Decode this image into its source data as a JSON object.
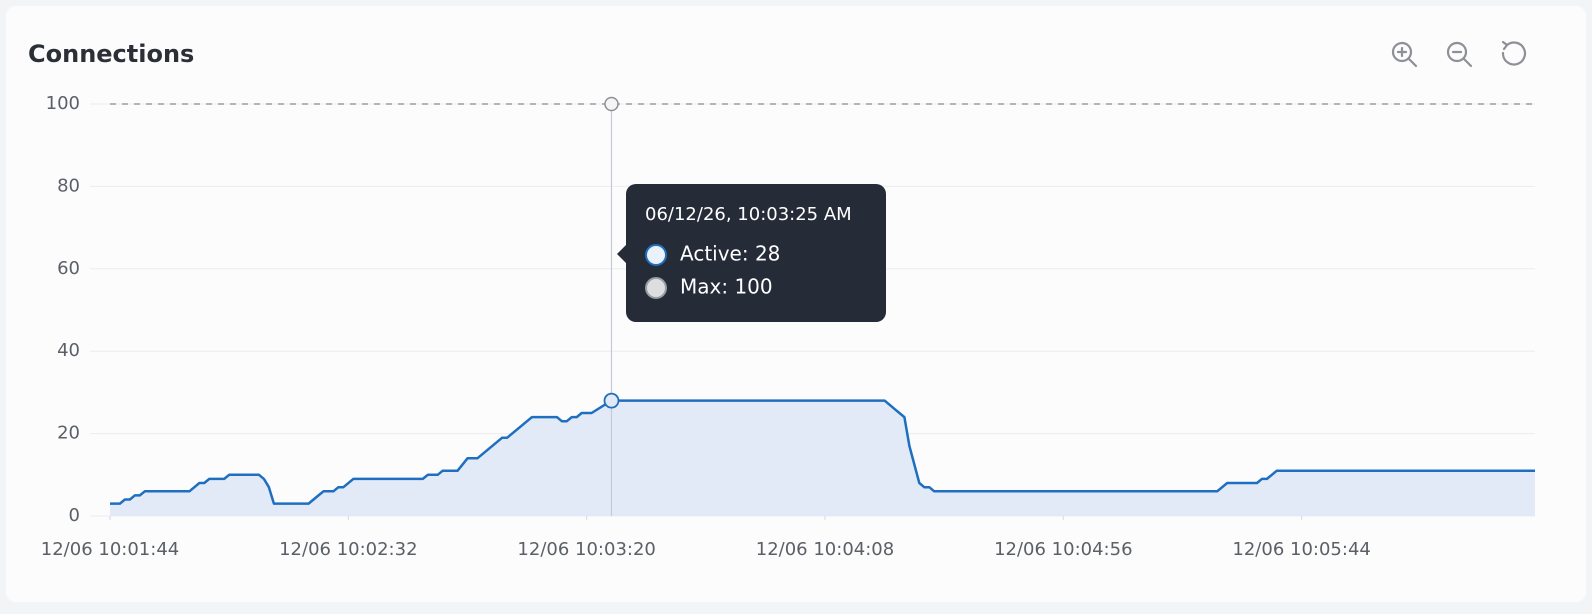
{
  "chart_data": {
    "type": "line",
    "title": "Connections",
    "xlim": [
      "12/06 10:01:44",
      "12/06 10:06:31"
    ],
    "xticks": [
      "12/06 10:01:44",
      "12/06 10:02:32",
      "12/06 10:03:20",
      "12/06 10:04:08",
      "12/06 10:04:56",
      "12/06 10:05:44"
    ],
    "ylim": [
      0,
      100
    ],
    "yticks": [
      0,
      20,
      40,
      60,
      80,
      100
    ],
    "grid": true,
    "series": [
      {
        "color": "#1f6fc0",
        "area_color": "#e3eaf7",
        "x": [
          "12/06 10:01:44",
          "12/06 10:01:46",
          "12/06 10:01:47",
          "12/06 10:01:48",
          "12/06 10:01:49",
          "12/06 10:01:50",
          "12/06 10:01:51",
          "12/06 10:02:00",
          "12/06 10:02:02",
          "12/06 10:02:03",
          "12/06 10:02:04",
          "12/06 10:02:07",
          "12/06 10:02:08",
          "12/06 10:02:14",
          "12/06 10:02:15",
          "12/06 10:02:16",
          "12/06 10:02:17",
          "12/06 10:02:24",
          "12/06 10:02:26",
          "12/06 10:02:27",
          "12/06 10:02:29",
          "12/06 10:02:30",
          "12/06 10:02:31",
          "12/06 10:02:33",
          "12/06 10:02:47",
          "12/06 10:02:48",
          "12/06 10:02:50",
          "12/06 10:02:51",
          "12/06 10:02:54",
          "12/06 10:02:56",
          "12/06 10:02:58",
          "12/06 10:03:03",
          "12/06 10:03:04",
          "12/06 10:03:09",
          "12/06 10:03:14",
          "12/06 10:03:15",
          "12/06 10:03:16",
          "12/06 10:03:17",
          "12/06 10:03:18",
          "12/06 10:03:19",
          "12/06 10:03:21",
          "12/06 10:03:25",
          "12/06 10:04:20",
          "12/06 10:04:22",
          "12/06 10:04:24",
          "12/06 10:04:25",
          "12/06 10:04:27",
          "12/06 10:04:28",
          "12/06 10:04:29",
          "12/06 10:04:30",
          "12/06 10:05:27",
          "12/06 10:05:29",
          "12/06 10:05:35",
          "12/06 10:05:36",
          "12/06 10:05:37",
          "12/06 10:05:39",
          "12/06 10:06:31"
        ],
        "values": [
          3,
          3,
          4,
          4,
          5,
          5,
          6,
          6,
          8,
          8,
          9,
          9,
          10,
          10,
          9,
          7,
          3,
          3,
          5,
          6,
          6,
          7,
          7,
          9,
          9,
          10,
          10,
          11,
          11,
          14,
          14,
          19,
          19,
          24,
          24,
          23,
          23,
          24,
          24,
          25,
          25,
          28,
          28,
          26,
          24,
          17,
          8,
          7,
          7,
          6,
          6,
          8,
          8,
          9,
          9,
          11,
          11
        ]
      },
      {
        "color": "#9a9ca1",
        "dashed": true,
        "x": [
          "12/06 10:01:44",
          "12/06 10:06:31"
        ],
        "values": [
          100,
          100
        ]
      }
    ],
    "tooltip": {
      "title": "06/12/26, 10:03:25 AM",
      "items": [
        "Active: 28",
        "Max: 100"
      ]
    }
  }
}
